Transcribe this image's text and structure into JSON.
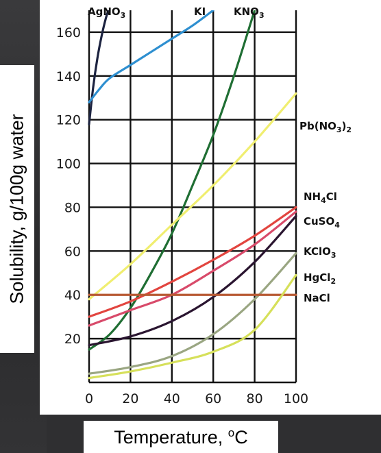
{
  "chart_data": {
    "type": "line",
    "title": "",
    "xlabel": "Temperature, °C",
    "xlabel_parts": [
      "Temperature, ",
      "o",
      "C"
    ],
    "ylabel": "Solubility, g/100g water",
    "xlim": [
      0,
      100
    ],
    "ylim": [
      0,
      170
    ],
    "x_ticks": [
      "0",
      "20",
      "40",
      "60",
      "80",
      "100"
    ],
    "y_ticks": [
      "20",
      "40",
      "60",
      "80",
      "100",
      "120",
      "140",
      "160"
    ],
    "grid": true,
    "series": [
      {
        "name": "AgNO3",
        "label_main": "AgNO",
        "label_sub": "3",
        "label_tail": "",
        "color": "#1c2340",
        "x": [
          0,
          2,
          4,
          6,
          8,
          10
        ],
        "y": [
          118,
          135,
          148,
          158,
          166,
          172
        ]
      },
      {
        "name": "KI",
        "label_main": "KI",
        "label_sub": "",
        "label_tail": "",
        "color": "#2e8fd0",
        "x": [
          0,
          5,
          10,
          20,
          30,
          40,
          50,
          60
        ],
        "y": [
          128,
          134,
          139,
          145,
          151,
          157,
          163,
          170
        ]
      },
      {
        "name": "KNO3",
        "label_main": "KNO",
        "label_sub": "3",
        "label_tail": "",
        "color": "#1f6e33",
        "x": [
          0,
          10,
          20,
          30,
          40,
          50,
          60,
          70,
          80
        ],
        "y": [
          15,
          22,
          34,
          50,
          68,
          90,
          113,
          140,
          170
        ]
      },
      {
        "name": "Pb(NO3)2",
        "label_main": "Pb(NO",
        "label_sub": "3",
        "label_tail": ")2",
        "color": "#f0ee70",
        "x": [
          0,
          20,
          40,
          60,
          80,
          100
        ],
        "y": [
          38,
          54,
          72,
          90,
          110,
          132
        ]
      },
      {
        "name": "NH4Cl",
        "label_main": "NH",
        "label_sub": "4",
        "label_tail": "Cl",
        "color": "#e2453f",
        "x": [
          0,
          20,
          40,
          60,
          80,
          100
        ],
        "y": [
          30,
          37,
          46,
          56,
          67,
          80
        ]
      },
      {
        "name": "CuSO4",
        "label_main": "CuSO",
        "label_sub": "4",
        "label_tail": "",
        "color": "#d84a6a",
        "x": [
          0,
          20,
          40,
          60,
          80,
          100
        ],
        "y": [
          26,
          33,
          40,
          51,
          63,
          78
        ]
      },
      {
        "name": "KClO3",
        "label_main": "KClO",
        "label_sub": "3",
        "label_tail": "",
        "color": "#2a1530",
        "x": [
          0,
          20,
          40,
          60,
          80,
          100
        ],
        "y": [
          17,
          21,
          28,
          39,
          55,
          76
        ]
      },
      {
        "name": "HgCl2",
        "label_main": "HgCl",
        "label_sub": "2",
        "label_tail": "",
        "color": "#9aa682",
        "x": [
          0,
          20,
          40,
          60,
          80,
          100
        ],
        "y": [
          4,
          7,
          12,
          22,
          38,
          59
        ]
      },
      {
        "name": "NaCl",
        "label_main": "NaCl",
        "label_sub": "",
        "label_tail": "",
        "color": "#b85a34",
        "x": [
          0,
          20,
          40,
          60,
          80,
          100
        ],
        "y": [
          40,
          40,
          40,
          40,
          40,
          40
        ]
      },
      {
        "name": "",
        "label_main": "",
        "label_sub": "",
        "label_tail": "",
        "color": "#d6e05a",
        "x": [
          0,
          20,
          40,
          60,
          80,
          100
        ],
        "y": [
          2,
          5,
          9,
          14,
          24,
          49
        ]
      }
    ]
  }
}
